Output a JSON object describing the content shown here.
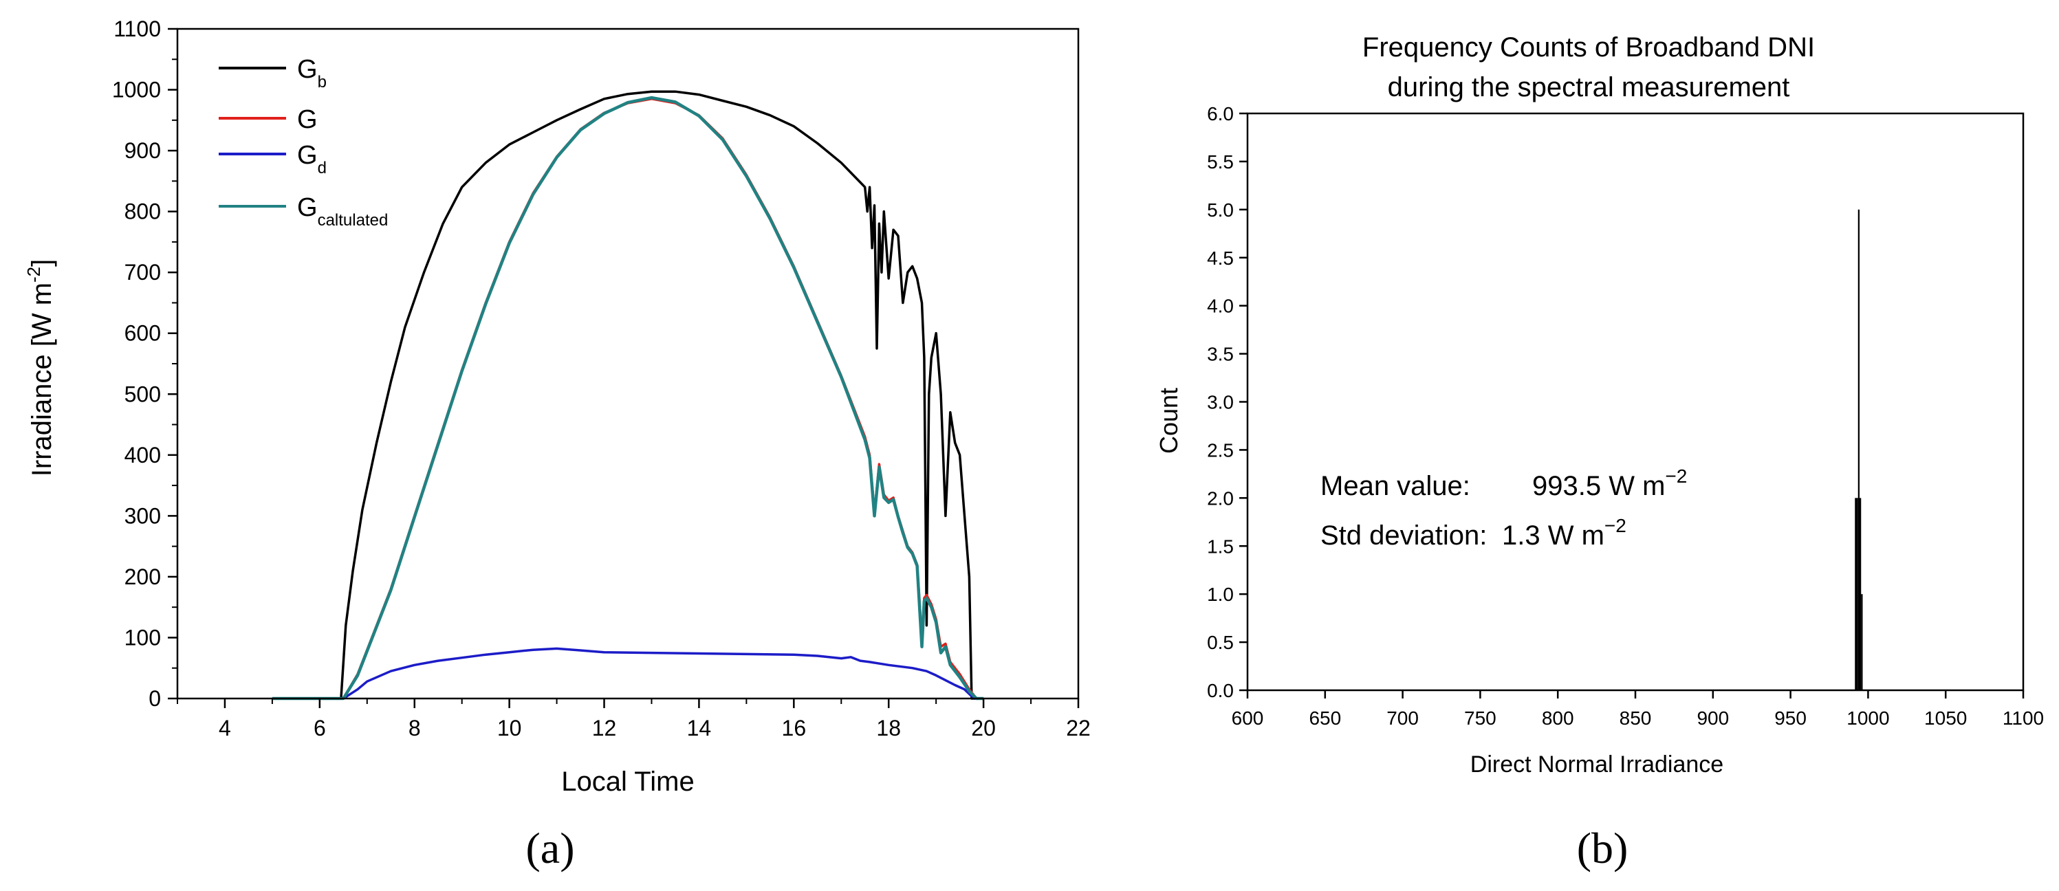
{
  "chart_data": [
    {
      "panel_label": "(a)",
      "type": "line",
      "title": "",
      "xlabel": "Local Time",
      "ylabel_main": "Irradiance [W m",
      "ylabel_sup": "-2",
      "ylabel_end": "]",
      "xlim": [
        3,
        22
      ],
      "ylim": [
        0,
        1100
      ],
      "xticks": [
        4,
        6,
        8,
        10,
        12,
        14,
        16,
        18,
        20,
        22
      ],
      "yticks": [
        0,
        100,
        200,
        300,
        400,
        500,
        600,
        700,
        800,
        900,
        1000,
        1100
      ],
      "legend_position": "top-left",
      "series": [
        {
          "name": "Gb",
          "label_main": "G",
          "label_sub": "b",
          "color": "#000000",
          "points": [
            [
              5.0,
              0
            ],
            [
              6.45,
              0
            ],
            [
              6.55,
              120
            ],
            [
              6.7,
              210
            ],
            [
              6.9,
              310
            ],
            [
              7.2,
              420
            ],
            [
              7.5,
              520
            ],
            [
              7.8,
              610
            ],
            [
              8.2,
              700
            ],
            [
              8.6,
              780
            ],
            [
              9.0,
              840
            ],
            [
              9.5,
              880
            ],
            [
              10.0,
              910
            ],
            [
              10.5,
              930
            ],
            [
              11.0,
              950
            ],
            [
              11.5,
              968
            ],
            [
              12.0,
              985
            ],
            [
              12.5,
              993
            ],
            [
              13.0,
              997
            ],
            [
              13.5,
              997
            ],
            [
              14.0,
              992
            ],
            [
              14.5,
              982
            ],
            [
              15.0,
              972
            ],
            [
              15.5,
              958
            ],
            [
              16.0,
              940
            ],
            [
              16.5,
              912
            ],
            [
              17.0,
              880
            ],
            [
              17.5,
              840
            ],
            [
              17.55,
              800
            ],
            [
              17.6,
              840
            ],
            [
              17.65,
              740
            ],
            [
              17.7,
              810
            ],
            [
              17.75,
              575
            ],
            [
              17.8,
              780
            ],
            [
              17.85,
              700
            ],
            [
              17.9,
              800
            ],
            [
              18.0,
              690
            ],
            [
              18.1,
              770
            ],
            [
              18.2,
              760
            ],
            [
              18.3,
              650
            ],
            [
              18.4,
              700
            ],
            [
              18.5,
              710
            ],
            [
              18.6,
              690
            ],
            [
              18.7,
              650
            ],
            [
              18.75,
              560
            ],
            [
              18.8,
              120
            ],
            [
              18.85,
              500
            ],
            [
              18.9,
              560
            ],
            [
              19.0,
              600
            ],
            [
              19.1,
              500
            ],
            [
              19.2,
              300
            ],
            [
              19.3,
              470
            ],
            [
              19.4,
              420
            ],
            [
              19.5,
              400
            ],
            [
              19.6,
              300
            ],
            [
              19.7,
              200
            ],
            [
              19.75,
              0
            ],
            [
              20.0,
              0
            ]
          ]
        },
        {
          "name": "G",
          "label_main": "G",
          "label_sub": "",
          "color": "#e0201b",
          "points": [
            [
              5.0,
              0
            ],
            [
              6.5,
              0
            ],
            [
              6.8,
              40
            ],
            [
              7.0,
              80
            ],
            [
              7.5,
              180
            ],
            [
              8.0,
              300
            ],
            [
              8.5,
              420
            ],
            [
              9.0,
              540
            ],
            [
              9.5,
              650
            ],
            [
              10.0,
              750
            ],
            [
              10.5,
              830
            ],
            [
              11.0,
              890
            ],
            [
              11.5,
              935
            ],
            [
              12.0,
              962
            ],
            [
              12.5,
              978
            ],
            [
              13.0,
              985
            ],
            [
              13.5,
              978
            ],
            [
              14.0,
              958
            ],
            [
              14.5,
              920
            ],
            [
              15.0,
              860
            ],
            [
              15.5,
              790
            ],
            [
              16.0,
              710
            ],
            [
              16.5,
              620
            ],
            [
              17.0,
              530
            ],
            [
              17.5,
              430
            ],
            [
              17.6,
              400
            ],
            [
              17.7,
              305
            ],
            [
              17.8,
              385
            ],
            [
              17.85,
              360
            ],
            [
              17.9,
              335
            ],
            [
              18.0,
              325
            ],
            [
              18.1,
              330
            ],
            [
              18.2,
              300
            ],
            [
              18.3,
              275
            ],
            [
              18.4,
              250
            ],
            [
              18.5,
              240
            ],
            [
              18.6,
              220
            ],
            [
              18.7,
              100
            ],
            [
              18.75,
              165
            ],
            [
              18.8,
              170
            ],
            [
              18.9,
              155
            ],
            [
              19.0,
              130
            ],
            [
              19.1,
              85
            ],
            [
              19.2,
              90
            ],
            [
              19.3,
              60
            ],
            [
              19.5,
              40
            ],
            [
              19.7,
              15
            ],
            [
              19.85,
              0
            ],
            [
              20.0,
              0
            ]
          ]
        },
        {
          "name": "Gd",
          "label_main": "G",
          "label_sub": "d",
          "color": "#1c1cc8",
          "points": [
            [
              5.0,
              0
            ],
            [
              6.5,
              0
            ],
            [
              6.8,
              15
            ],
            [
              7.0,
              28
            ],
            [
              7.5,
              45
            ],
            [
              8.0,
              55
            ],
            [
              8.5,
              62
            ],
            [
              9.0,
              67
            ],
            [
              9.5,
              72
            ],
            [
              10.0,
              76
            ],
            [
              10.5,
              80
            ],
            [
              11.0,
              82
            ],
            [
              11.5,
              79
            ],
            [
              12.0,
              76
            ],
            [
              13.0,
              75
            ],
            [
              14.0,
              74
            ],
            [
              15.0,
              73
            ],
            [
              16.0,
              72
            ],
            [
              16.5,
              70
            ],
            [
              17.0,
              66
            ],
            [
              17.2,
              68
            ],
            [
              17.4,
              62
            ],
            [
              17.6,
              60
            ],
            [
              18.0,
              55
            ],
            [
              18.5,
              50
            ],
            [
              18.8,
              45
            ],
            [
              19.0,
              38
            ],
            [
              19.2,
              30
            ],
            [
              19.4,
              22
            ],
            [
              19.6,
              15
            ],
            [
              19.8,
              0
            ],
            [
              20.0,
              0
            ]
          ]
        },
        {
          "name": "Gcaltulated",
          "label_main": "G",
          "label_sub": "caltulated",
          "color": "#218283",
          "points": [
            [
              5.0,
              0
            ],
            [
              6.5,
              0
            ],
            [
              6.8,
              38
            ],
            [
              7.0,
              78
            ],
            [
              7.5,
              178
            ],
            [
              8.0,
              298
            ],
            [
              8.5,
              418
            ],
            [
              9.0,
              538
            ],
            [
              9.5,
              648
            ],
            [
              10.0,
              748
            ],
            [
              10.5,
              828
            ],
            [
              11.0,
              889
            ],
            [
              11.5,
              934
            ],
            [
              12.0,
              961
            ],
            [
              12.5,
              979
            ],
            [
              13.0,
              987
            ],
            [
              13.5,
              980
            ],
            [
              14.0,
              957
            ],
            [
              14.5,
              918
            ],
            [
              15.0,
              858
            ],
            [
              15.5,
              788
            ],
            [
              16.0,
              708
            ],
            [
              16.5,
              618
            ],
            [
              17.0,
              528
            ],
            [
              17.5,
              425
            ],
            [
              17.6,
              395
            ],
            [
              17.7,
              300
            ],
            [
              17.8,
              380
            ],
            [
              17.85,
              355
            ],
            [
              17.9,
              330
            ],
            [
              18.0,
              322
            ],
            [
              18.1,
              327
            ],
            [
              18.2,
              298
            ],
            [
              18.3,
              272
            ],
            [
              18.4,
              248
            ],
            [
              18.5,
              238
            ],
            [
              18.6,
              218
            ],
            [
              18.7,
              85
            ],
            [
              18.75,
              160
            ],
            [
              18.8,
              165
            ],
            [
              18.9,
              150
            ],
            [
              19.0,
              125
            ],
            [
              19.1,
              75
            ],
            [
              19.2,
              85
            ],
            [
              19.3,
              55
            ],
            [
              19.5,
              35
            ],
            [
              19.7,
              12
            ],
            [
              19.85,
              0
            ],
            [
              20.0,
              0
            ]
          ]
        }
      ]
    },
    {
      "panel_label": "(b)",
      "type": "bar",
      "title": "Frequency Counts of Broadband DNI",
      "subtitle": "during the spectral measurement",
      "xlabel": "Direct Normal Irradiance",
      "ylabel": "Count",
      "xlim": [
        600,
        1100
      ],
      "ylim": [
        0,
        6
      ],
      "xticks": [
        600,
        650,
        700,
        750,
        800,
        850,
        900,
        950,
        1000,
        1050,
        1100
      ],
      "yticks": [
        "0.0",
        "0.5",
        "1.0",
        "1.5",
        "2.0",
        "2.5",
        "3.0",
        "3.5",
        "4.0",
        "4.5",
        "5.0",
        "5.5",
        "6.0"
      ],
      "bars": [
        {
          "x": 992,
          "count": 2
        },
        {
          "x": 993,
          "count": 2
        },
        {
          "x": 994,
          "count": 5
        },
        {
          "x": 995,
          "count": 2
        },
        {
          "x": 996,
          "count": 1
        }
      ],
      "annotations": {
        "mean_label": "Mean value:",
        "mean_value": "993.5 W m",
        "mean_sup": "−2",
        "std_label": "Std deviation:",
        "std_value": "1.3 W m",
        "std_sup": "−2"
      }
    }
  ]
}
